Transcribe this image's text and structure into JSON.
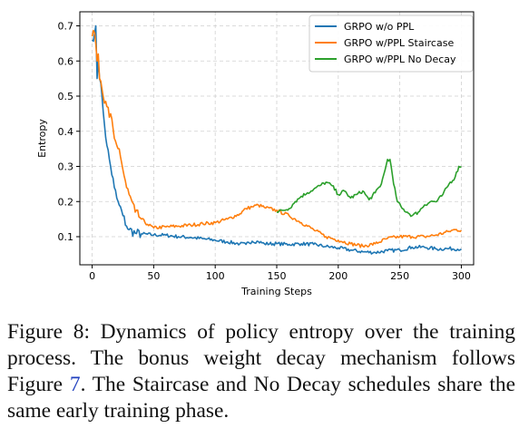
{
  "chart_data": {
    "type": "line",
    "xlabel": "Training Steps",
    "ylabel": "Entropy",
    "xlim": [
      -10,
      310
    ],
    "ylim": [
      0.02,
      0.74
    ],
    "x_ticks": [
      0,
      50,
      100,
      150,
      200,
      250,
      300
    ],
    "y_ticks": [
      0.1,
      0.2,
      0.3,
      0.4,
      0.5,
      0.6,
      0.7
    ],
    "x_tick_labels": [
      "0",
      "50",
      "100",
      "150",
      "200",
      "250",
      "300"
    ],
    "y_tick_labels": [
      "0.1",
      "0.2",
      "0.3",
      "0.4",
      "0.5",
      "0.6",
      "0.7"
    ],
    "grid": true,
    "legend_position": "top-right",
    "series": [
      {
        "name": "GRPO w/o PPL",
        "color": "#1f77b4",
        "points": [
          [
            0,
            0.66
          ],
          [
            2,
            0.68
          ],
          [
            3,
            0.7
          ],
          [
            4,
            0.55
          ],
          [
            5,
            0.6
          ],
          [
            6,
            0.55
          ],
          [
            8,
            0.5
          ],
          [
            10,
            0.42
          ],
          [
            12,
            0.36
          ],
          [
            15,
            0.3
          ],
          [
            18,
            0.24
          ],
          [
            20,
            0.21
          ],
          [
            22,
            0.19
          ],
          [
            25,
            0.16
          ],
          [
            28,
            0.13
          ],
          [
            30,
            0.12
          ],
          [
            35,
            0.11
          ],
          [
            40,
            0.108
          ],
          [
            50,
            0.105
          ],
          [
            60,
            0.104
          ],
          [
            70,
            0.1
          ],
          [
            80,
            0.098
          ],
          [
            90,
            0.094
          ],
          [
            100,
            0.09
          ],
          [
            110,
            0.085
          ],
          [
            120,
            0.08
          ],
          [
            125,
            0.078
          ],
          [
            130,
            0.087
          ],
          [
            135,
            0.086
          ],
          [
            140,
            0.08
          ],
          [
            150,
            0.08
          ],
          [
            160,
            0.078
          ],
          [
            170,
            0.08
          ],
          [
            180,
            0.078
          ],
          [
            190,
            0.072
          ],
          [
            200,
            0.068
          ],
          [
            210,
            0.062
          ],
          [
            220,
            0.057
          ],
          [
            230,
            0.055
          ],
          [
            240,
            0.06
          ],
          [
            250,
            0.062
          ],
          [
            260,
            0.07
          ],
          [
            270,
            0.07
          ],
          [
            280,
            0.065
          ],
          [
            290,
            0.066
          ],
          [
            300,
            0.065
          ]
        ]
      },
      {
        "name": "GRPO w/PPL Staircase",
        "color": "#ff7f0e",
        "points": [
          [
            0,
            0.67
          ],
          [
            2,
            0.68
          ],
          [
            4,
            0.6
          ],
          [
            5,
            0.62
          ],
          [
            6,
            0.55
          ],
          [
            8,
            0.52
          ],
          [
            10,
            0.48
          ],
          [
            12,
            0.47
          ],
          [
            14,
            0.44
          ],
          [
            15,
            0.45
          ],
          [
            18,
            0.38
          ],
          [
            20,
            0.36
          ],
          [
            22,
            0.35
          ],
          [
            25,
            0.29
          ],
          [
            28,
            0.24
          ],
          [
            30,
            0.22
          ],
          [
            35,
            0.17
          ],
          [
            40,
            0.15
          ],
          [
            45,
            0.135
          ],
          [
            50,
            0.125
          ],
          [
            60,
            0.128
          ],
          [
            70,
            0.13
          ],
          [
            80,
            0.133
          ],
          [
            90,
            0.137
          ],
          [
            100,
            0.14
          ],
          [
            110,
            0.15
          ],
          [
            120,
            0.165
          ],
          [
            125,
            0.18
          ],
          [
            130,
            0.185
          ],
          [
            135,
            0.19
          ],
          [
            140,
            0.183
          ],
          [
            150,
            0.175
          ],
          [
            160,
            0.16
          ],
          [
            170,
            0.14
          ],
          [
            180,
            0.12
          ],
          [
            190,
            0.1
          ],
          [
            200,
            0.09
          ],
          [
            210,
            0.08
          ],
          [
            220,
            0.073
          ],
          [
            230,
            0.08
          ],
          [
            240,
            0.095
          ],
          [
            250,
            0.1
          ],
          [
            260,
            0.1
          ],
          [
            270,
            0.1
          ],
          [
            280,
            0.105
          ],
          [
            290,
            0.115
          ],
          [
            295,
            0.12
          ],
          [
            300,
            0.118
          ]
        ]
      },
      {
        "name": "GRPO w/PPL No Decay",
        "color": "#2ca02c",
        "points": [
          [
            150,
            0.17
          ],
          [
            155,
            0.175
          ],
          [
            160,
            0.18
          ],
          [
            165,
            0.2
          ],
          [
            170,
            0.215
          ],
          [
            175,
            0.225
          ],
          [
            180,
            0.235
          ],
          [
            185,
            0.245
          ],
          [
            190,
            0.255
          ],
          [
            195,
            0.245
          ],
          [
            200,
            0.22
          ],
          [
            205,
            0.23
          ],
          [
            210,
            0.21
          ],
          [
            215,
            0.22
          ],
          [
            220,
            0.23
          ],
          [
            225,
            0.205
          ],
          [
            230,
            0.225
          ],
          [
            235,
            0.25
          ],
          [
            238,
            0.29
          ],
          [
            240,
            0.32
          ],
          [
            242,
            0.32
          ],
          [
            245,
            0.25
          ],
          [
            248,
            0.2
          ],
          [
            252,
            0.18
          ],
          [
            256,
            0.17
          ],
          [
            260,
            0.16
          ],
          [
            265,
            0.17
          ],
          [
            270,
            0.19
          ],
          [
            275,
            0.2
          ],
          [
            280,
            0.2
          ],
          [
            285,
            0.22
          ],
          [
            290,
            0.25
          ],
          [
            295,
            0.27
          ],
          [
            298,
            0.3
          ],
          [
            300,
            0.3
          ]
        ]
      }
    ]
  },
  "caption": {
    "label": "Figure 8:",
    "text_1": " Dynamics of policy entropy over the training process. The bonus weight decay mechanism follows Figure ",
    "ref": "7",
    "text_2": ". The Staircase and No Decay schedules share the same early training phase."
  }
}
